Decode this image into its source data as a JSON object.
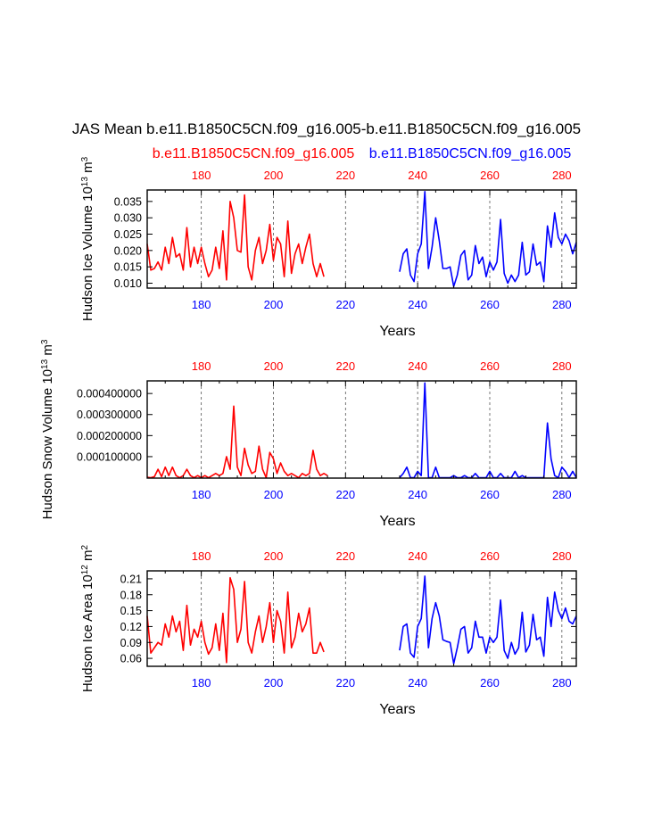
{
  "title": "JAS Mean b.e11.B1850C5CN.f09_g16.005-b.e11.B1850C5CN.f09_g16.005",
  "legend": {
    "case1": "b.e11.B1850C5CN.f09_g16.005",
    "case2": "b.e11.B1850C5CN.f09_g16.005"
  },
  "colors": {
    "case1": "#ff0000",
    "case2": "#0000ff",
    "axis": "#000000",
    "refline": "#555555"
  },
  "chart_data": [
    {
      "type": "line",
      "ylabel_main": "Hudson Ice Volume 10",
      "ylabel_exp": "13",
      "ylabel_unit_main": " m",
      "ylabel_unit_exp": "3",
      "xlabel": "Years",
      "xlim": [
        165,
        284
      ],
      "ylim": [
        0.0085,
        0.0385
      ],
      "yticks": [
        "0.010",
        "0.015",
        "0.020",
        "0.025",
        "0.030",
        "0.035"
      ],
      "ytick_values": [
        0.01,
        0.015,
        0.02,
        0.025,
        0.03,
        0.035
      ],
      "top_ticks": [
        "180",
        "200",
        "220",
        "240",
        "260",
        "280"
      ],
      "bottom_ticks": [
        "180",
        "200",
        "220",
        "240",
        "260",
        "280"
      ],
      "tick_values": [
        180,
        200,
        220,
        240,
        260,
        280
      ],
      "series": [
        {
          "name": "b.e11.B1850C5CN.f09_g16.005",
          "x_start": 165,
          "values": [
            0.022,
            0.014,
            0.0145,
            0.0165,
            0.014,
            0.021,
            0.016,
            0.024,
            0.018,
            0.019,
            0.014,
            0.027,
            0.015,
            0.021,
            0.016,
            0.021,
            0.016,
            0.012,
            0.014,
            0.021,
            0.0145,
            0.026,
            0.011,
            0.035,
            0.03,
            0.02,
            0.0195,
            0.037,
            0.015,
            0.011,
            0.02,
            0.024,
            0.016,
            0.02,
            0.028,
            0.017,
            0.024,
            0.022,
            0.012,
            0.029,
            0.013,
            0.019,
            0.022,
            0.016,
            0.021,
            0.025,
            0.016,
            0.012,
            0.016,
            0.012
          ]
        },
        {
          "name": "b.e11.B1850C5CN.f09_g16.005",
          "x_start": 235,
          "values": [
            0.0135,
            0.019,
            0.0205,
            0.0125,
            0.0105,
            0.019,
            0.022,
            0.038,
            0.0145,
            0.021,
            0.03,
            0.023,
            0.0145,
            0.0145,
            0.015,
            0.009,
            0.0125,
            0.0185,
            0.02,
            0.011,
            0.0125,
            0.0215,
            0.016,
            0.018,
            0.012,
            0.0165,
            0.014,
            0.0165,
            0.0295,
            0.013,
            0.01,
            0.0125,
            0.0105,
            0.0125,
            0.0225,
            0.0125,
            0.0135,
            0.022,
            0.0155,
            0.0165,
            0.0105,
            0.0275,
            0.021,
            0.0315,
            0.024,
            0.022,
            0.025,
            0.023,
            0.019,
            0.0225
          ]
        }
      ]
    },
    {
      "type": "line",
      "ylabel_main": "Hudson Snow Volume 10",
      "ylabel_exp": "13",
      "ylabel_unit_main": " m",
      "ylabel_unit_exp": "3",
      "xlabel": "Years",
      "xlim": [
        165,
        284
      ],
      "ylim": [
        -2e-06,
        0.00046
      ],
      "yticks": [
        "0.000100000",
        "0.000200000",
        "0.000300000",
        "0.000400000"
      ],
      "ytick_values": [
        0.0001,
        0.0002,
        0.0003,
        0.0004
      ],
      "top_ticks": [
        "180",
        "200",
        "220",
        "240",
        "260",
        "280"
      ],
      "bottom_ticks": [
        "180",
        "200",
        "220",
        "240",
        "260",
        "280"
      ],
      "tick_values": [
        180,
        200,
        220,
        240,
        260,
        280
      ],
      "series": [
        {
          "name": "b.e11.B1850C5CN.f09_g16.005",
          "x_start": 165,
          "values": [
            2e-06,
            0.0,
            5e-06,
            4e-05,
            5e-06,
            5e-05,
            1e-05,
            5e-05,
            1e-05,
            0.0,
            1e-05,
            4e-05,
            1e-05,
            0.0,
            1e-05,
            0.0,
            1e-05,
            0.0,
            1e-05,
            2e-05,
            1e-05,
            2e-05,
            0.0001,
            4e-05,
            0.00034,
            5e-05,
            1e-05,
            0.00014,
            6e-05,
            2e-05,
            3e-05,
            0.00015,
            4e-05,
            0.0,
            0.00012,
            9e-05,
            2e-05,
            7e-05,
            3e-05,
            1e-05,
            2e-05,
            1e-05,
            0.0,
            2e-05,
            1e-05,
            2e-05,
            0.00013,
            4e-05,
            1e-05,
            2e-05,
            1e-05
          ]
        },
        {
          "name": "b.e11.B1850C5CN.f09_g16.005",
          "x_start": 235,
          "values": [
            0.0,
            2e-05,
            5e-05,
            0.0,
            0.0,
            3e-05,
            1e-05,
            0.00045,
            0.0,
            0.0,
            5e-05,
            0.0,
            0.0,
            0.0,
            0.0,
            1e-05,
            0.0,
            0.0,
            1e-05,
            0.0,
            0.0,
            2e-05,
            0.0,
            0.0,
            0.0,
            3e-05,
            0.0,
            0.0,
            2e-05,
            0.0,
            0.0,
            0.0,
            3e-05,
            0.0,
            1e-05,
            0.0,
            0.0,
            0.0,
            0.0,
            0.0,
            0.0,
            0.00026,
            9e-05,
            1e-05,
            0.0,
            5e-05,
            3e-05,
            0.0,
            3e-05,
            0.0
          ]
        }
      ]
    },
    {
      "type": "line",
      "ylabel_main": "Hudson Ice Area 10",
      "ylabel_exp": "12",
      "ylabel_unit_main": " m",
      "ylabel_unit_exp": "2",
      "xlabel": "Years",
      "xlim": [
        165,
        284
      ],
      "ylim": [
        0.045,
        0.225
      ],
      "yticks": [
        "0.06",
        "0.09",
        "0.12",
        "0.15",
        "0.18",
        "0.21"
      ],
      "ytick_values": [
        0.06,
        0.09,
        0.12,
        0.15,
        0.18,
        0.21
      ],
      "top_ticks": [
        "180",
        "200",
        "220",
        "240",
        "260",
        "280"
      ],
      "bottom_ticks": [
        "180",
        "200",
        "220",
        "240",
        "260",
        "280"
      ],
      "tick_values": [
        180,
        200,
        220,
        240,
        260,
        280
      ],
      "series": [
        {
          "name": "b.e11.B1850C5CN.f09_g16.005",
          "x_start": 165,
          "values": [
            0.14,
            0.07,
            0.08,
            0.09,
            0.085,
            0.125,
            0.1,
            0.14,
            0.11,
            0.13,
            0.075,
            0.16,
            0.085,
            0.115,
            0.1,
            0.13,
            0.09,
            0.068,
            0.08,
            0.125,
            0.075,
            0.145,
            0.052,
            0.212,
            0.19,
            0.09,
            0.115,
            0.205,
            0.09,
            0.07,
            0.11,
            0.14,
            0.09,
            0.12,
            0.165,
            0.09,
            0.15,
            0.13,
            0.07,
            0.185,
            0.08,
            0.1,
            0.145,
            0.11,
            0.125,
            0.155,
            0.07,
            0.07,
            0.09,
            0.072
          ]
        },
        {
          "name": "b.e11.B1850C5CN.f09_g16.005",
          "x_start": 235,
          "values": [
            0.075,
            0.12,
            0.125,
            0.07,
            0.062,
            0.12,
            0.135,
            0.215,
            0.08,
            0.135,
            0.165,
            0.14,
            0.095,
            0.092,
            0.09,
            0.05,
            0.08,
            0.115,
            0.12,
            0.07,
            0.08,
            0.13,
            0.1,
            0.1,
            0.07,
            0.1,
            0.09,
            0.1,
            0.17,
            0.075,
            0.06,
            0.09,
            0.068,
            0.08,
            0.147,
            0.072,
            0.085,
            0.143,
            0.095,
            0.1,
            0.064,
            0.175,
            0.12,
            0.185,
            0.15,
            0.135,
            0.155,
            0.13,
            0.125,
            0.14
          ]
        }
      ]
    }
  ]
}
